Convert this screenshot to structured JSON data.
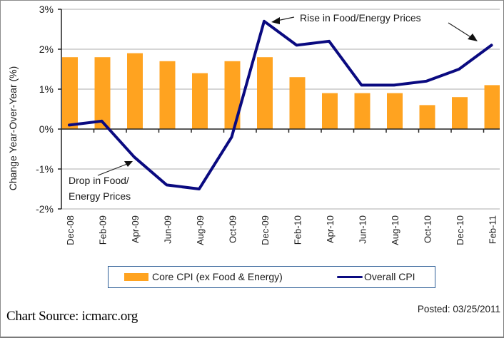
{
  "chart_data": {
    "type": "bar",
    "title": "",
    "xlabel": "",
    "ylabel": "Change Year-Over-Year (%)",
    "ylim": [
      -2,
      3
    ],
    "yticks": [
      3,
      2,
      1,
      0,
      -1,
      -2
    ],
    "ytick_labels": [
      "3%",
      "2%",
      "1%",
      "0%",
      "-1%",
      "-2%"
    ],
    "grid": true,
    "categories": [
      "Dec-08",
      "Feb-09",
      "Apr-09",
      "Jun-09",
      "Aug-09",
      "Oct-09",
      "Dec-09",
      "Feb-10",
      "Apr-10",
      "Jun-10",
      "Aug-10",
      "Oct-10",
      "Dec-10",
      "Feb-11"
    ],
    "series": [
      {
        "name": "Core CPI (ex Food & Energy)",
        "type": "bar",
        "color": "#FFA320",
        "values": [
          1.8,
          1.8,
          1.9,
          1.7,
          1.4,
          1.7,
          1.8,
          1.3,
          0.9,
          0.9,
          0.9,
          0.6,
          0.8,
          1.1
        ]
      },
      {
        "name": "Overall CPI",
        "type": "line",
        "color": "#0A0A80",
        "values": [
          0.1,
          0.2,
          -0.7,
          -1.4,
          -1.5,
          -0.2,
          2.7,
          2.1,
          2.2,
          1.1,
          1.1,
          1.2,
          1.5,
          2.1
        ]
      }
    ],
    "legend": {
      "position": "bottom",
      "entries": [
        "Core CPI (ex Food & Energy)",
        "Overall CPI"
      ]
    },
    "annotations": [
      {
        "name": "drop-annotation",
        "lines": [
          "Drop in Food/",
          "Energy Prices"
        ],
        "points_to": "Apr-09"
      },
      {
        "name": "rise-annotation",
        "lines": [
          "Rise in Food/Energy Prices"
        ],
        "points_to": [
          "Dec-09",
          "Feb-11"
        ]
      }
    ]
  },
  "footer": {
    "source": "Chart Source: icmarc.org",
    "posted": "Posted: 03/25/2011"
  }
}
